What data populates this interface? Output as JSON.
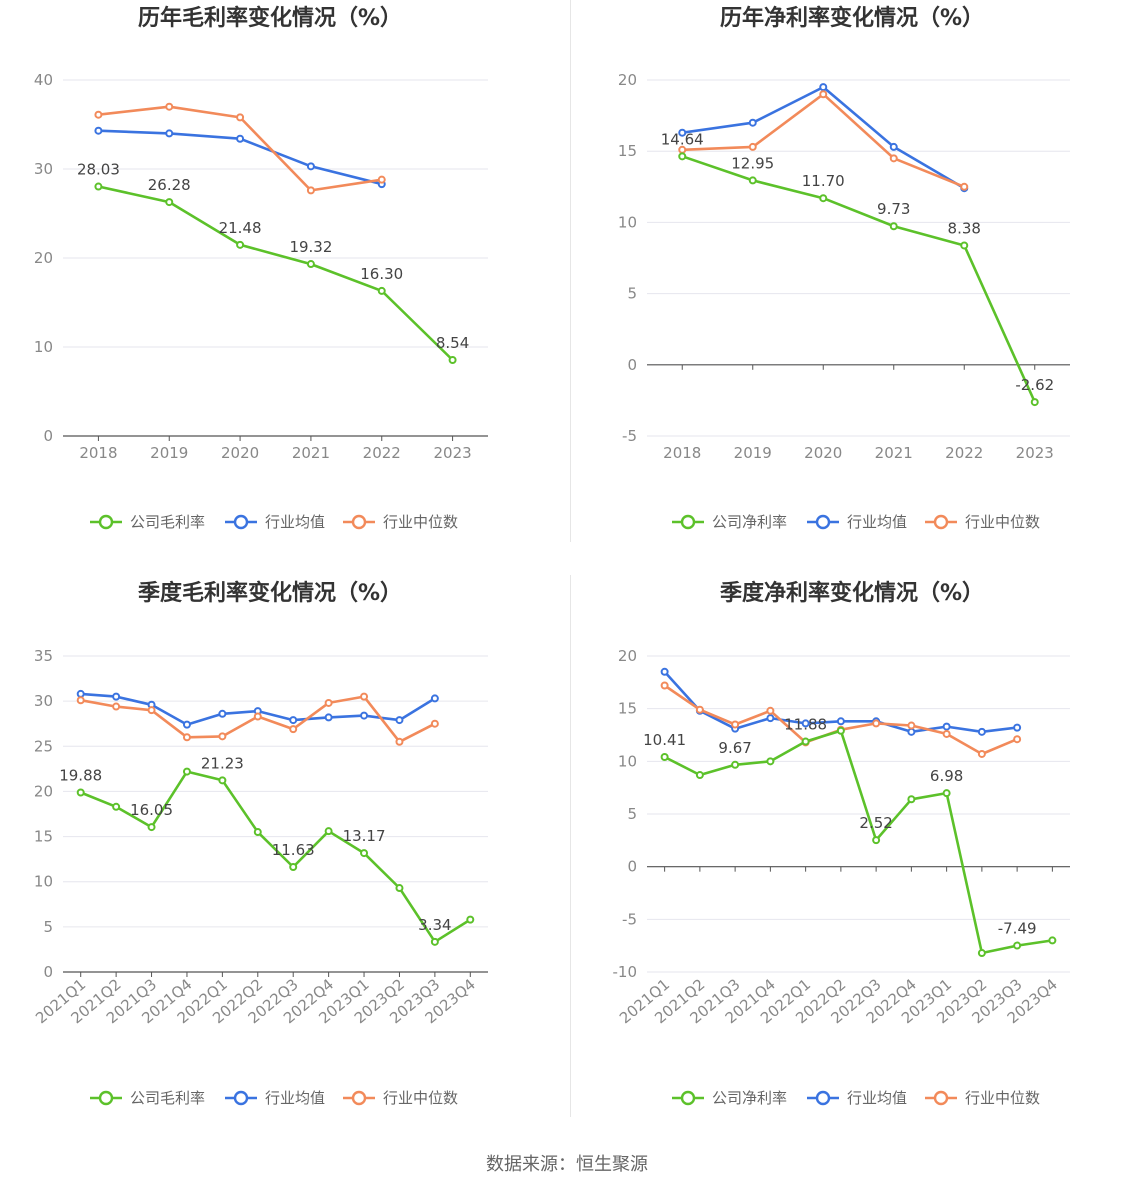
{
  "source": "数据来源：恒生聚源",
  "colors": {
    "company": "#5cc12a",
    "avg": "#3a73e0",
    "median": "#f28a5a",
    "grid": "#e6e6ee",
    "axis": "#555555"
  },
  "chart_data": [
    {
      "type": "line",
      "title": "历年毛利率变化情况（%）",
      "categories": [
        "2018",
        "2019",
        "2020",
        "2021",
        "2022",
        "2023"
      ],
      "ylim": [
        0,
        40
      ],
      "yticks": [
        0,
        10,
        20,
        30,
        40
      ],
      "legend": [
        "公司毛利率",
        "行业均值",
        "行业中位数"
      ],
      "legend_position": "bottom",
      "grid": true,
      "series": [
        {
          "name": "公司毛利率",
          "values": [
            28.03,
            26.28,
            21.48,
            19.32,
            16.3,
            8.54
          ],
          "labels": [
            "28.03",
            "26.28",
            "21.48",
            "19.32",
            "16.30",
            "8.54"
          ]
        },
        {
          "name": "行业均值",
          "values": [
            34.3,
            34.0,
            33.4,
            30.3,
            28.3,
            null
          ]
        },
        {
          "name": "行业中位数",
          "values": [
            36.1,
            37.0,
            35.8,
            27.6,
            28.8,
            null
          ]
        }
      ]
    },
    {
      "type": "line",
      "title": "历年净利率变化情况（%）",
      "categories": [
        "2018",
        "2019",
        "2020",
        "2021",
        "2022",
        "2023"
      ],
      "ylim": [
        -5,
        20
      ],
      "yticks": [
        -5,
        0,
        5,
        10,
        15,
        20
      ],
      "legend": [
        "公司净利率",
        "行业均值",
        "行业中位数"
      ],
      "legend_position": "bottom",
      "grid": true,
      "series": [
        {
          "name": "公司净利率",
          "values": [
            14.64,
            12.95,
            11.7,
            9.73,
            8.38,
            -2.62
          ],
          "labels": [
            "14.64",
            "12.95",
            "11.70",
            "9.73",
            "8.38",
            "-2.62"
          ]
        },
        {
          "name": "行业均值",
          "values": [
            16.3,
            17.0,
            19.5,
            15.3,
            12.4,
            null
          ]
        },
        {
          "name": "行业中位数",
          "values": [
            15.1,
            15.3,
            19.0,
            14.5,
            12.5,
            null
          ]
        }
      ]
    },
    {
      "type": "line",
      "title": "季度毛利率变化情况（%）",
      "categories": [
        "2021Q1",
        "2021Q2",
        "2021Q3",
        "2021Q4",
        "2022Q1",
        "2022Q2",
        "2022Q3",
        "2022Q4",
        "2023Q1",
        "2023Q2",
        "2023Q3",
        "2023Q4"
      ],
      "ylim": [
        0,
        35
      ],
      "yticks": [
        0,
        5,
        10,
        15,
        20,
        25,
        30,
        35
      ],
      "legend": [
        "公司毛利率",
        "行业均值",
        "行业中位数"
      ],
      "legend_position": "bottom",
      "grid": true,
      "series": [
        {
          "name": "公司毛利率",
          "values": [
            19.88,
            18.3,
            16.05,
            22.2,
            21.23,
            15.5,
            11.63,
            15.6,
            13.17,
            9.3,
            3.34,
            5.8
          ],
          "labels": [
            "19.88",
            "",
            "16.05",
            "",
            "21.23",
            "",
            "11.63",
            "",
            "13.17",
            "",
            "3.34",
            ""
          ]
        },
        {
          "name": "行业均值",
          "values": [
            30.8,
            30.5,
            29.6,
            27.4,
            28.6,
            28.9,
            27.9,
            28.2,
            28.4,
            27.9,
            30.3,
            null
          ]
        },
        {
          "name": "行业中位数",
          "values": [
            30.1,
            29.4,
            29.0,
            26.0,
            26.1,
            28.3,
            26.9,
            29.8,
            30.5,
            25.5,
            27.5,
            null
          ]
        }
      ]
    },
    {
      "type": "line",
      "title": "季度净利率变化情况（%）",
      "categories": [
        "2021Q1",
        "2021Q2",
        "2021Q3",
        "2021Q4",
        "2022Q1",
        "2022Q2",
        "2022Q3",
        "2022Q4",
        "2023Q1",
        "2023Q2",
        "2023Q3",
        "2023Q4"
      ],
      "ylim": [
        -10,
        20
      ],
      "yticks": [
        -10,
        -5,
        0,
        5,
        10,
        15,
        20
      ],
      "legend": [
        "公司净利率",
        "行业均值",
        "行业中位数"
      ],
      "legend_position": "bottom",
      "grid": true,
      "series": [
        {
          "name": "公司净利率",
          "values": [
            10.41,
            8.7,
            9.67,
            10.0,
            11.88,
            12.9,
            2.52,
            6.4,
            6.98,
            -8.2,
            -7.49,
            -7.0
          ],
          "labels": [
            "10.41",
            "",
            "9.67",
            "",
            "11.88",
            "",
            "2.52",
            "",
            "6.98",
            "",
            "-7.49",
            ""
          ]
        },
        {
          "name": "行业均值",
          "values": [
            18.5,
            14.8,
            13.1,
            14.1,
            13.6,
            13.8,
            13.8,
            12.8,
            13.3,
            12.8,
            13.2,
            null
          ]
        },
        {
          "name": "行业中位数",
          "values": [
            17.2,
            14.9,
            13.5,
            14.8,
            11.8,
            13.0,
            13.6,
            13.4,
            12.6,
            10.7,
            12.1,
            null
          ]
        }
      ]
    }
  ]
}
